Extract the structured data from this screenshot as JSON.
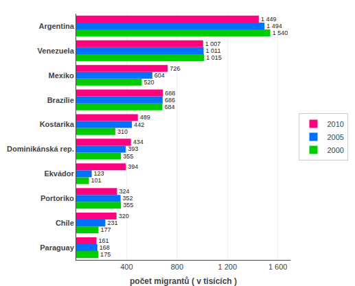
{
  "chart_data": {
    "type": "bar",
    "orientation": "horizontal",
    "categories": [
      "Paraguay",
      "Chile",
      "Portoriko",
      "Ekvádor",
      "Dominikánská rep.",
      "Kostarika",
      "Brazílie",
      "Mexiko",
      "Venezuela",
      "Argentina"
    ],
    "series": [
      {
        "name": "2010",
        "color": "#FF007F",
        "values": [
          161,
          320,
          324,
          394,
          434,
          489,
          688,
          726,
          1007,
          1449
        ],
        "value_labels": [
          "161",
          "320",
          "324",
          "394",
          "434",
          "489",
          "688",
          "726",
          "1 007",
          "1 449"
        ]
      },
      {
        "name": "2005",
        "color": "#0070FF",
        "values": [
          168,
          231,
          352,
          123,
          393,
          442,
          686,
          604,
          1011,
          1494
        ],
        "value_labels": [
          "168",
          "231",
          "352",
          "123",
          "393",
          "442",
          "686",
          "604",
          "1 011",
          "1 494"
        ]
      },
      {
        "name": "2000",
        "color": "#00CC00",
        "values": [
          175,
          177,
          355,
          101,
          355,
          310,
          684,
          520,
          1015,
          1540
        ],
        "value_labels": [
          "175",
          "177",
          "355",
          "101",
          "355",
          "310",
          "684",
          "520",
          "1 015",
          "1 540"
        ]
      }
    ],
    "xlabel": "počet migrantů ( v tisících )",
    "xlim": [
      0,
      1700
    ],
    "xticks": [
      400,
      800,
      {
        "value": 1200,
        "label": "1 200"
      },
      {
        "value": 1600,
        "label": "1 600"
      }
    ],
    "grid": true,
    "legend": "right",
    "data_labels": true
  }
}
